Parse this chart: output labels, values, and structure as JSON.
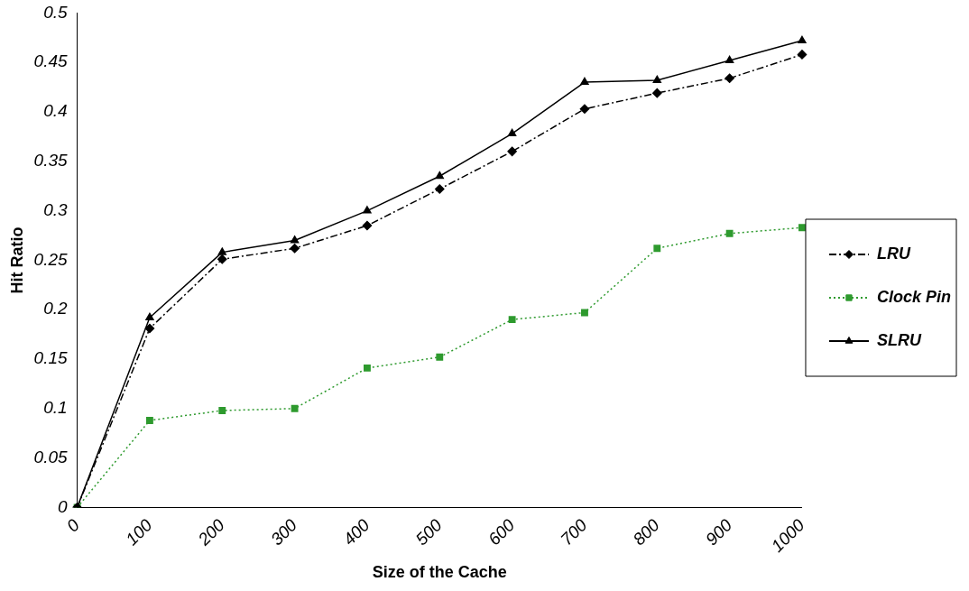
{
  "chart_data": {
    "type": "line",
    "xlabel": "Size of the Cache",
    "ylabel": "Hit Ratio",
    "categories": [
      "0",
      "100",
      "200",
      "300",
      "400",
      "500",
      "600",
      "700",
      "800",
      "900",
      "1000"
    ],
    "series": [
      {
        "name": "LRU",
        "color": "#000000",
        "marker": "diamond",
        "line_style": "dashed",
        "values": [
          0,
          0.181,
          0.251,
          0.262,
          0.285,
          0.322,
          0.36,
          0.403,
          0.419,
          0.434,
          0.458
        ]
      },
      {
        "name": "Clock Pin",
        "color": "#2e9a2e",
        "marker": "square",
        "line_style": "dotted",
        "values": [
          0,
          0.088,
          0.098,
          0.1,
          0.141,
          0.152,
          0.19,
          0.197,
          0.262,
          0.277,
          0.283
        ]
      },
      {
        "name": "SLRU",
        "color": "#000000",
        "marker": "triangle",
        "line_style": "solid",
        "values": [
          0,
          0.192,
          0.258,
          0.27,
          0.3,
          0.335,
          0.378,
          0.43,
          0.432,
          0.452,
          0.472
        ]
      }
    ],
    "ylim": [
      0,
      0.5
    ],
    "yticks": [
      0,
      0.05,
      0.1,
      0.15,
      0.2,
      0.25,
      0.3,
      0.35,
      0.4,
      0.45,
      0.5
    ],
    "grid": false,
    "legend": "right"
  }
}
